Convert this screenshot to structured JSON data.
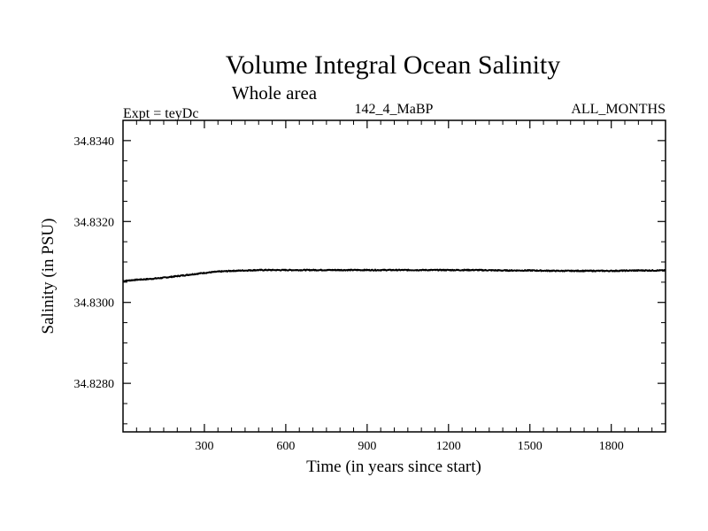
{
  "chart_data": {
    "type": "line",
    "title": "Volume Integral Ocean Salinity",
    "subtitle": "Whole area",
    "experiment_label": "Expt = teyDc",
    "center_label": "142_4_MaBP",
    "right_label": "ALL_MONTHS",
    "xlabel": "Time (in years since start)",
    "ylabel": "Salinity (in PSU)",
    "xlim": [
      0,
      2000
    ],
    "ylim": [
      34.8268,
      34.8345
    ],
    "x_ticks": [
      300,
      600,
      900,
      1200,
      1500,
      1800
    ],
    "x_tick_labels": [
      "300",
      "600",
      "900",
      "1200",
      "1500",
      "1800"
    ],
    "y_ticks": [
      34.828,
      34.83,
      34.832,
      34.834
    ],
    "y_tick_labels": [
      "34.8280",
      "34.8300",
      "34.8320",
      "34.8340"
    ],
    "grid": false,
    "series": [
      {
        "name": "Salinity",
        "x": [
          0,
          50,
          100,
          150,
          200,
          250,
          300,
          350,
          400,
          450,
          500,
          600,
          700,
          800,
          900,
          1000,
          1100,
          1200,
          1300,
          1400,
          1500,
          1600,
          1700,
          1800,
          1900,
          2000
        ],
        "values": [
          34.83053,
          34.83056,
          34.83058,
          34.83061,
          34.83065,
          34.83069,
          34.83073,
          34.83076,
          34.83078,
          34.83079,
          34.8308,
          34.8308,
          34.8308,
          34.8308,
          34.8308,
          34.8308,
          34.8308,
          34.8308,
          34.8308,
          34.83079,
          34.83079,
          34.83078,
          34.83078,
          34.83078,
          34.83079,
          34.83079
        ]
      }
    ]
  }
}
